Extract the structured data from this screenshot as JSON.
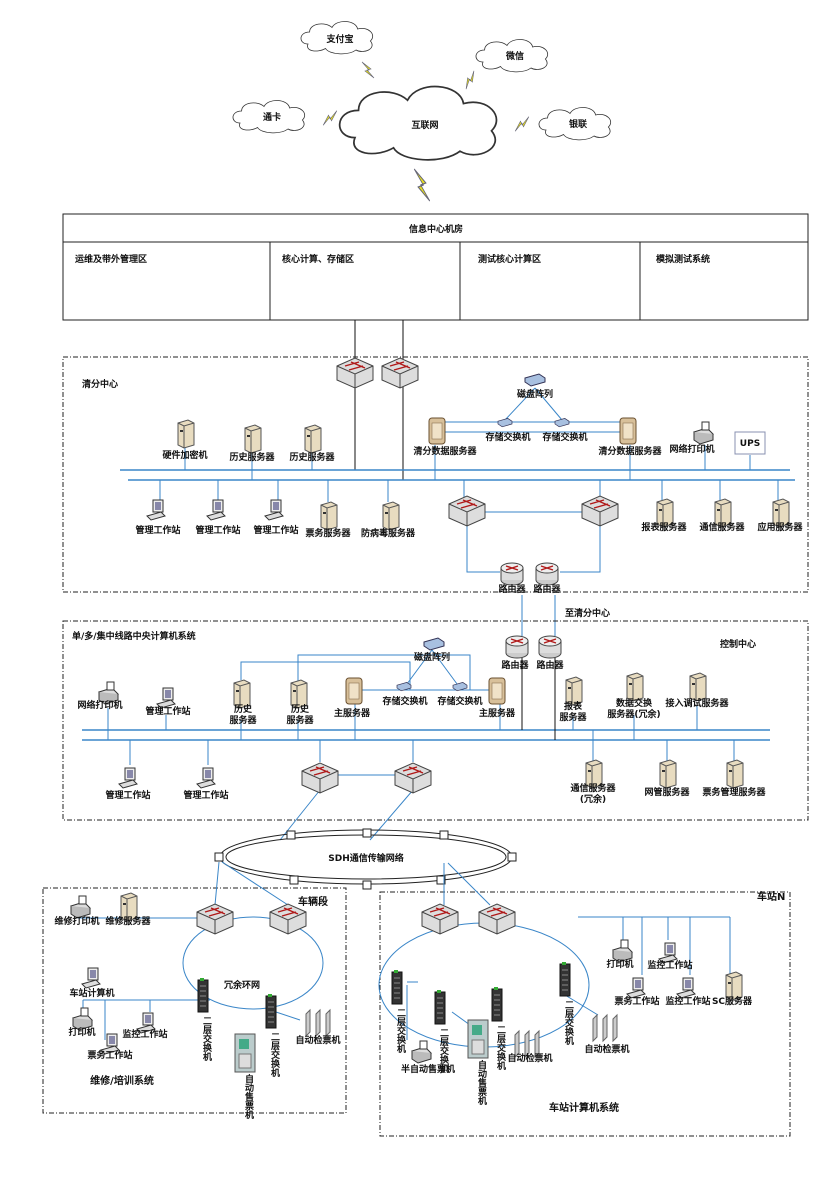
{
  "clouds": {
    "alipay": "支付宝",
    "wechat": "微信",
    "card": "通卡",
    "internet": "互联网",
    "unionpay": "银联"
  },
  "info_center": {
    "title": "信息中心机房",
    "zones": [
      "运维及带外管理区",
      "核心计算、存储区",
      "测试核心计算区",
      "模拟测试系统"
    ]
  },
  "clearing": {
    "title": "清分中心",
    "hsm": "硬件加密机",
    "hist1": "历史服务器",
    "hist2": "历史服务器",
    "data1": "清分数据服务器",
    "disk": "磁盘阵列",
    "sw1": "存储交换机",
    "sw2": "存储交换机",
    "data2": "清分数据服务器",
    "printer": "网络打印机",
    "ups": "UPS",
    "ws1": "管理工作站",
    "ws2": "管理工作站",
    "ws3": "管理工作站",
    "ticket": "票务服务器",
    "av": "防病毒服务器",
    "report": "报表服务器",
    "comm": "通信服务器",
    "app": "应用服务器",
    "r1": "路由器",
    "r2": "路由器"
  },
  "link_label": "至清分中心",
  "control": {
    "title": "单/多/集中线路中央计算机系统",
    "subtitle": "控制中心",
    "r1": "路由器",
    "r2": "路由器",
    "printer": "网络打印机",
    "ws_top": "管理工作站",
    "hist1a": "历史",
    "hist1b": "服务器",
    "hist2a": "历史",
    "hist2b": "服务器",
    "main1": "主服务器",
    "disk": "磁盘阵列",
    "sw1": "存储交换机",
    "sw2": "存储交换机",
    "main2": "主服务器",
    "report_a": "报表",
    "report_b": "服务器",
    "dx_a": "数据交换",
    "dx_b": "服务器(冗余)",
    "access": "接入调试服务器",
    "ws1": "管理工作站",
    "ws2": "管理工作站",
    "comm_a": "通信服务器",
    "comm_b": "(冗余)",
    "nms": "网管服务器",
    "tms": "票务管理服务器"
  },
  "sdh": "SDH通信传输网络",
  "depot": {
    "title": "车辆段",
    "system": "维修/培训系统",
    "mprinter": "维修打印机",
    "mserver": "维修服务器",
    "station_pc": "车站计算机",
    "printer": "打印机",
    "monitor": "监控工作站",
    "ticket_ws": "票务工作站",
    "ring": "冗余环网",
    "l2a": "二层交换机",
    "l2b": "二层交换机",
    "tvm": "自动售票机",
    "gate": "自动检票机"
  },
  "station": {
    "title": "车站N",
    "system": "车站计算机系统",
    "printer": "打印机",
    "monitor1": "监控工作站",
    "ticket_ws": "票务工作站",
    "monitor2": "监控工作站",
    "sc": "SC服务器",
    "l2a": "二层交换机",
    "l2b": "二层交换机",
    "l2c": "二层交换机",
    "l2d": "二层交换机",
    "bom": "半自动售票机",
    "tvm": "自动售票机",
    "gate1": "自动检票机",
    "gate2": "自动检票机"
  },
  "colors": {
    "link": "#3a86c8",
    "router_arrow": "#b01818",
    "server": "#e8dcc0"
  }
}
